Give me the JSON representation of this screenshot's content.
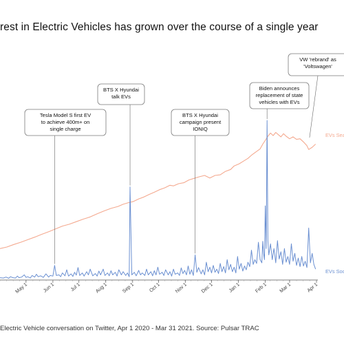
{
  "title": "rest in Electric Vehicles has grown over the course of a single year",
  "footer": "Electric Vehicle conversation on Twitter, Apr 1 2020 - Mar 31 2021. Source: Pulsar TRAC",
  "colors": {
    "search": "#f4a98f",
    "social": "#6a8fd1",
    "axis": "#555555",
    "callout_border": "#7a7a7a"
  },
  "chart_data": {
    "type": "line",
    "title": "rest in Electric Vehicles has grown over the course of a single year",
    "xlabel": "",
    "ylabel": "",
    "x_ticks": [
      "May 1",
      "Jun 1",
      "Jul 1",
      "Aug 1",
      "Sep 1",
      "Oct 1",
      "Nov 1",
      "Dec 1",
      "Jan 1",
      "Feb 1",
      "Mar 1",
      "Apr 1"
    ],
    "x_tick_days": [
      30,
      61,
      91,
      122,
      153,
      183,
      214,
      244,
      275,
      306,
      334,
      365
    ],
    "x_range": [
      "2020-04-01",
      "2021-03-31"
    ],
    "grid": false,
    "legend": "right, inline at line ends",
    "series": [
      {
        "name": "EVs Sea",
        "color": "#f4a98f",
        "points": [
          [
            0,
            95
          ],
          [
            8,
            100
          ],
          [
            16,
            108
          ],
          [
            24,
            115
          ],
          [
            32,
            123
          ],
          [
            40,
            131
          ],
          [
            48,
            140
          ],
          [
            56,
            148
          ],
          [
            64,
            157
          ],
          [
            72,
            166
          ],
          [
            80,
            172
          ],
          [
            88,
            180
          ],
          [
            96,
            188
          ],
          [
            104,
            195
          ],
          [
            112,
            205
          ],
          [
            120,
            214
          ],
          [
            128,
            222
          ],
          [
            136,
            228
          ],
          [
            142,
            235
          ],
          [
            148,
            240
          ],
          [
            154,
            244
          ],
          [
            160,
            252
          ],
          [
            166,
            258
          ],
          [
            172,
            266
          ],
          [
            178,
            273
          ],
          [
            184,
            281
          ],
          [
            190,
            287
          ],
          [
            196,
            295
          ],
          [
            200,
            293
          ],
          [
            206,
            300
          ],
          [
            212,
            303
          ],
          [
            218,
            312
          ],
          [
            224,
            317
          ],
          [
            230,
            322
          ],
          [
            236,
            326
          ],
          [
            242,
            318
          ],
          [
            248,
            326
          ],
          [
            254,
            328
          ],
          [
            260,
            339
          ],
          [
            266,
            345
          ],
          [
            270,
            356
          ],
          [
            276,
            363
          ],
          [
            280,
            370
          ],
          [
            286,
            380
          ],
          [
            290,
            390
          ],
          [
            296,
            402
          ],
          [
            300,
            410
          ],
          [
            303,
            425
          ],
          [
            306,
            437
          ],
          [
            309,
            450
          ],
          [
            312,
            460
          ],
          [
            315,
            452
          ],
          [
            318,
            462
          ],
          [
            321,
            455
          ],
          [
            324,
            448
          ],
          [
            327,
            458
          ],
          [
            330,
            450
          ],
          [
            334,
            442
          ],
          [
            338,
            448
          ],
          [
            342,
            440
          ],
          [
            346,
            442
          ],
          [
            350,
            432
          ],
          [
            354,
            420
          ],
          [
            356,
            408
          ],
          [
            360,
            415
          ],
          [
            364,
            425
          ]
        ]
      },
      {
        "name": "EVs Soc",
        "color": "#6a8fd1",
        "points": [
          [
            0,
            3
          ],
          [
            4,
            2
          ],
          [
            7,
            5
          ],
          [
            10,
            1
          ],
          [
            12,
            6
          ],
          [
            15,
            3
          ],
          [
            18,
            2
          ],
          [
            20,
            8
          ],
          [
            22,
            3
          ],
          [
            25,
            5
          ],
          [
            28,
            12
          ],
          [
            30,
            4
          ],
          [
            32,
            6
          ],
          [
            35,
            2
          ],
          [
            37,
            10
          ],
          [
            40,
            5
          ],
          [
            42,
            14
          ],
          [
            44,
            6
          ],
          [
            47,
            9
          ],
          [
            50,
            4
          ],
          [
            53,
            15
          ],
          [
            56,
            5
          ],
          [
            58,
            10
          ],
          [
            61,
            8
          ],
          [
            63,
            42
          ],
          [
            65,
            10
          ],
          [
            68,
            12
          ],
          [
            70,
            6
          ],
          [
            72,
            18
          ],
          [
            75,
            9
          ],
          [
            77,
            28
          ],
          [
            79,
            8
          ],
          [
            82,
            15
          ],
          [
            84,
            7
          ],
          [
            86,
            20
          ],
          [
            88,
            11
          ],
          [
            90,
            35
          ],
          [
            92,
            10
          ],
          [
            95,
            18
          ],
          [
            97,
            8
          ],
          [
            100,
            22
          ],
          [
            102,
            12
          ],
          [
            104,
            30
          ],
          [
            107,
            9
          ],
          [
            110,
            16
          ],
          [
            112,
            8
          ],
          [
            114,
            24
          ],
          [
            116,
            12
          ],
          [
            119,
            30
          ],
          [
            121,
            10
          ],
          [
            124,
            18
          ],
          [
            126,
            9
          ],
          [
            128,
            25
          ],
          [
            130,
            12
          ],
          [
            133,
            20
          ],
          [
            135,
            8
          ],
          [
            137,
            28
          ],
          [
            140,
            12
          ],
          [
            142,
            22
          ],
          [
            145,
            10
          ],
          [
            147,
            18
          ],
          [
            149,
            6
          ],
          [
            150,
            290
          ],
          [
            152,
            12
          ],
          [
            155,
            20
          ],
          [
            157,
            9
          ],
          [
            160,
            26
          ],
          [
            162,
            12
          ],
          [
            164,
            18
          ],
          [
            167,
            10
          ],
          [
            169,
            30
          ],
          [
            171,
            12
          ],
          [
            174,
            22
          ],
          [
            176,
            9
          ],
          [
            178,
            25
          ],
          [
            180,
            12
          ],
          [
            182,
            36
          ],
          [
            184,
            14
          ],
          [
            187,
            20
          ],
          [
            189,
            10
          ],
          [
            191,
            28
          ],
          [
            194,
            12
          ],
          [
            196,
            22
          ],
          [
            198,
            8
          ],
          [
            200,
            30
          ],
          [
            202,
            14
          ],
          [
            205,
            18
          ],
          [
            207,
            10
          ],
          [
            209,
            34
          ],
          [
            211,
            16
          ],
          [
            213,
            26
          ],
          [
            215,
            12
          ],
          [
            217,
            40
          ],
          [
            219,
            14
          ],
          [
            221,
            28
          ],
          [
            223,
            10
          ],
          [
            225,
            75
          ],
          [
            227,
            20
          ],
          [
            229,
            35
          ],
          [
            232,
            15
          ],
          [
            234,
            28
          ],
          [
            236,
            12
          ],
          [
            238,
            52
          ],
          [
            240,
            22
          ],
          [
            242,
            36
          ],
          [
            244,
            18
          ],
          [
            246,
            42
          ],
          [
            248,
            20
          ],
          [
            250,
            30
          ],
          [
            252,
            16
          ],
          [
            254,
            48
          ],
          [
            256,
            22
          ],
          [
            258,
            38
          ],
          [
            260,
            18
          ],
          [
            262,
            60
          ],
          [
            264,
            28
          ],
          [
            266,
            45
          ],
          [
            268,
            22
          ],
          [
            270,
            36
          ],
          [
            272,
            18
          ],
          [
            274,
            70
          ],
          [
            276,
            30
          ],
          [
            278,
            48
          ],
          [
            280,
            24
          ],
          [
            282,
            40
          ],
          [
            284,
            28
          ],
          [
            286,
            52
          ],
          [
            288,
            38
          ],
          [
            290,
            90
          ],
          [
            292,
            45
          ],
          [
            294,
            60
          ],
          [
            296,
            48
          ],
          [
            298,
            115
          ],
          [
            300,
            60
          ],
          [
            302,
            50
          ],
          [
            303,
            118
          ],
          [
            304,
            80
          ],
          [
            305,
            60
          ],
          [
            306,
            230
          ],
          [
            307,
            95
          ],
          [
            308,
            500
          ],
          [
            309,
            120
          ],
          [
            310,
            75
          ],
          [
            312,
            110
          ],
          [
            314,
            60
          ],
          [
            316,
            95
          ],
          [
            318,
            50
          ],
          [
            320,
            120
          ],
          [
            322,
            62
          ],
          [
            324,
            85
          ],
          [
            326,
            45
          ],
          [
            328,
            95
          ],
          [
            330,
            52
          ],
          [
            332,
            70
          ],
          [
            334,
            45
          ],
          [
            336,
            110
          ],
          [
            338,
            55
          ],
          [
            340,
            80
          ],
          [
            342,
            42
          ],
          [
            344,
            65
          ],
          [
            346,
            38
          ],
          [
            348,
            70
          ],
          [
            350,
            40
          ],
          [
            352,
            55
          ],
          [
            354,
            35
          ],
          [
            356,
            160
          ],
          [
            358,
            50
          ],
          [
            360,
            80
          ],
          [
            362,
            45
          ],
          [
            364,
            30
          ]
        ]
      }
    ],
    "annotations": [
      {
        "lines": [
          "Tesla Model S first EV",
          "to achieve 400m+ on",
          "single charge"
        ],
        "day": 63
      },
      {
        "lines": [
          "BTS X Hyundai",
          "talk EVs"
        ],
        "day": 150
      },
      {
        "lines": [
          "BTS X Hyundai",
          "campaign present",
          "IONIQ"
        ],
        "day": 225
      },
      {
        "lines": [
          "Biden announces",
          "replacement of state",
          "vehicles with EVs"
        ],
        "day": 308
      },
      {
        "lines": [
          "VW 'rebrand' as",
          "'Voltswagen'"
        ],
        "day": 356
      }
    ]
  }
}
